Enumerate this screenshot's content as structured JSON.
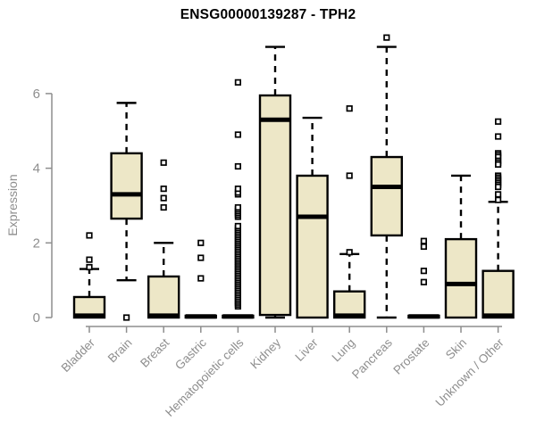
{
  "colors": {
    "background": "#ffffff",
    "title": "#000000",
    "axis": "#8e8e8e",
    "axis_text": "#8e8e8e",
    "box_fill": "#EDE7C7",
    "box_stroke": "#000000"
  },
  "chart_data": {
    "type": "boxplot",
    "title": "ENSG00000139287 - TPH2",
    "xlabel": "",
    "ylabel": "Expression",
    "ylim": [
      0,
      7.6
    ],
    "yticks": [
      0,
      2,
      4,
      6
    ],
    "grid": false,
    "categories": [
      "Bladder",
      "Brain",
      "Breast",
      "Gastric",
      "Hematopoietic cells",
      "Kidney",
      "Liver",
      "Lung",
      "Pancreas",
      "Prostate",
      "Skin",
      "Unknown / Other"
    ],
    "series": [
      {
        "name": "Bladder",
        "whisker_low": 0,
        "q1": 0,
        "median": 0.05,
        "q3": 0.55,
        "whisker_high": 1.3,
        "outliers": [
          1.35,
          1.55,
          2.2
        ]
      },
      {
        "name": "Brain",
        "whisker_low": 1.0,
        "q1": 2.65,
        "median": 3.3,
        "q3": 4.4,
        "whisker_high": 5.75,
        "outliers": [
          0
        ]
      },
      {
        "name": "Breast",
        "whisker_low": 0,
        "q1": 0,
        "median": 0.05,
        "q3": 1.1,
        "whisker_high": 2.0,
        "outliers": [
          2.95,
          3.2,
          3.45,
          4.15
        ]
      },
      {
        "name": "Gastric",
        "whisker_low": 0,
        "q1": 0,
        "median": 0.03,
        "q3": 0.05,
        "whisker_high": 0.05,
        "outliers": [
          1.05,
          1.6,
          2.0
        ]
      },
      {
        "name": "Hematopoietic cells",
        "whisker_low": 0,
        "q1": 0,
        "median": 0.03,
        "q3": 0.05,
        "whisker_high": 0.05,
        "outliers": [
          0.3,
          0.35,
          0.4,
          0.45,
          0.5,
          0.55,
          0.6,
          0.65,
          0.7,
          0.75,
          0.8,
          0.85,
          0.9,
          0.95,
          1.0,
          1.05,
          1.1,
          1.15,
          1.2,
          1.25,
          1.3,
          1.35,
          1.4,
          1.45,
          1.5,
          1.55,
          1.6,
          1.65,
          1.7,
          1.75,
          1.8,
          1.85,
          1.9,
          1.95,
          2.0,
          2.05,
          2.1,
          2.15,
          2.2,
          2.25,
          2.3,
          2.35,
          2.4,
          2.45,
          2.7,
          2.75,
          2.8,
          2.85,
          2.9,
          2.95,
          3.3,
          3.35,
          3.45,
          4.05,
          4.9,
          6.3
        ]
      },
      {
        "name": "Kidney",
        "whisker_low": 0,
        "q1": 0.07,
        "median": 5.3,
        "q3": 5.95,
        "whisker_high": 7.25,
        "outliers": []
      },
      {
        "name": "Liver",
        "whisker_low": 0,
        "q1": 0,
        "median": 2.7,
        "q3": 3.8,
        "whisker_high": 5.35,
        "outliers": []
      },
      {
        "name": "Lung",
        "whisker_low": 0,
        "q1": 0,
        "median": 0.05,
        "q3": 0.7,
        "whisker_high": 1.7,
        "outliers": [
          1.75,
          3.8,
          5.6
        ]
      },
      {
        "name": "Pancreas",
        "whisker_low": 0,
        "q1": 2.2,
        "median": 3.5,
        "q3": 4.3,
        "whisker_high": 7.25,
        "outliers": [
          7.5
        ]
      },
      {
        "name": "Prostate",
        "whisker_low": 0,
        "q1": 0,
        "median": 0.03,
        "q3": 0.05,
        "whisker_high": 0.05,
        "outliers": [
          0.95,
          1.25,
          1.9,
          2.05
        ]
      },
      {
        "name": "Skin",
        "whisker_low": 0,
        "q1": 0,
        "median": 0.9,
        "q3": 2.1,
        "whisker_high": 3.8,
        "outliers": []
      },
      {
        "name": "Unknown / Other",
        "whisker_low": 0,
        "q1": 0,
        "median": 0.05,
        "q3": 1.25,
        "whisker_high": 3.1,
        "outliers": [
          5.25,
          4.85,
          4.4,
          4.35,
          4.3,
          4.2,
          4.15,
          4.1,
          3.8,
          3.75,
          3.7,
          3.65,
          3.6,
          3.55,
          3.5,
          3.3,
          3.15
        ]
      }
    ]
  }
}
